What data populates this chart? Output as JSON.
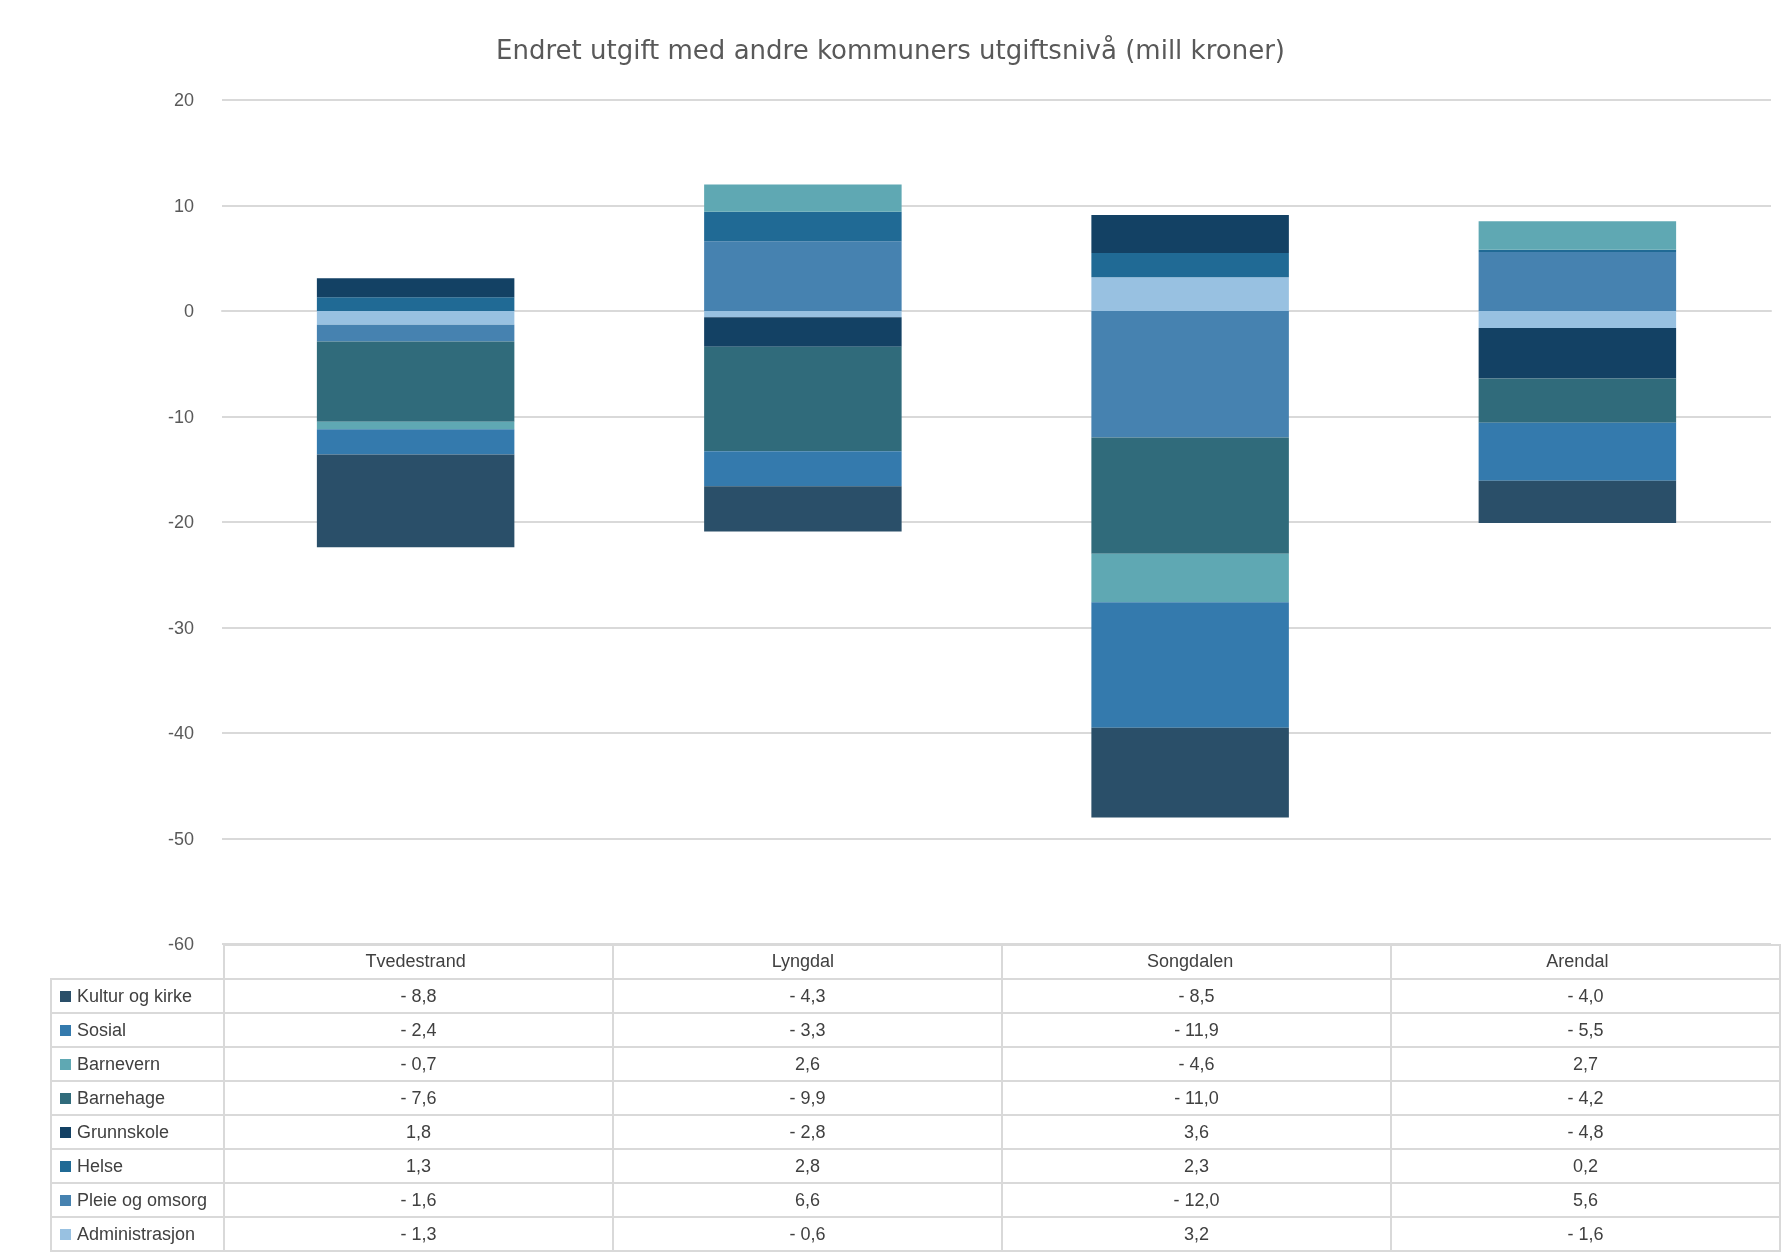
{
  "chart_data": {
    "type": "bar",
    "title": "Endret utgift med andre kommuners utgiftsnivå (mill kroner)",
    "categories": [
      "Tvedestrand",
      "Lyngdal",
      "Songdalen",
      "Arendal"
    ],
    "stacked": true,
    "series": [
      {
        "name": "Administrasjon",
        "color": "#98c1e1",
        "values": [
          -1.3,
          -0.6,
          3.2,
          -1.6
        ],
        "value_labels": [
          "- 1,3",
          "- 0,6",
          "3,2",
          "- 1,6"
        ]
      },
      {
        "name": "Pleie og omsorg",
        "color": "#4682b0",
        "values": [
          -1.6,
          6.6,
          -12.0,
          5.6
        ],
        "value_labels": [
          "- 1,6",
          "6,6",
          "- 12,0",
          "5,6"
        ]
      },
      {
        "name": "Helse",
        "color": "#206a95",
        "values": [
          1.3,
          2.8,
          2.3,
          0.2
        ],
        "value_labels": [
          "1,3",
          "2,8",
          "2,3",
          "0,2"
        ]
      },
      {
        "name": "Grunnskole",
        "color": "#134164",
        "values": [
          1.8,
          -2.8,
          3.6,
          -4.8
        ],
        "value_labels": [
          "1,8",
          "- 2,8",
          "3,6",
          "- 4,8"
        ]
      },
      {
        "name": "Barnehage",
        "color": "#306b7b",
        "values": [
          -7.6,
          -9.9,
          -11.0,
          -4.2
        ],
        "value_labels": [
          "- 7,6",
          "- 9,9",
          "- 11,0",
          "- 4,2"
        ]
      },
      {
        "name": "Barnevern",
        "color": "#5fa8b3",
        "values": [
          -0.7,
          2.6,
          -4.6,
          2.7
        ],
        "value_labels": [
          "- 0,7",
          "2,6",
          "- 4,6",
          "2,7"
        ]
      },
      {
        "name": "Sosial",
        "color": "#347aad",
        "values": [
          -2.4,
          -3.3,
          -11.9,
          -5.5
        ],
        "value_labels": [
          "- 2,4",
          "- 3,3",
          "- 11,9",
          "- 5,5"
        ]
      },
      {
        "name": "Kultur og kirke",
        "color": "#2a4f69",
        "values": [
          -8.8,
          -4.3,
          -8.5,
          -4.0
        ],
        "value_labels": [
          "- 8,8",
          "- 4,3",
          "- 8,5",
          "- 4,0"
        ]
      }
    ],
    "ylim": [
      -60,
      20
    ],
    "yticks": [
      -60,
      -50,
      -40,
      -30,
      -20,
      -10,
      0,
      10,
      20
    ],
    "grid": "y",
    "legend": "bottom"
  }
}
